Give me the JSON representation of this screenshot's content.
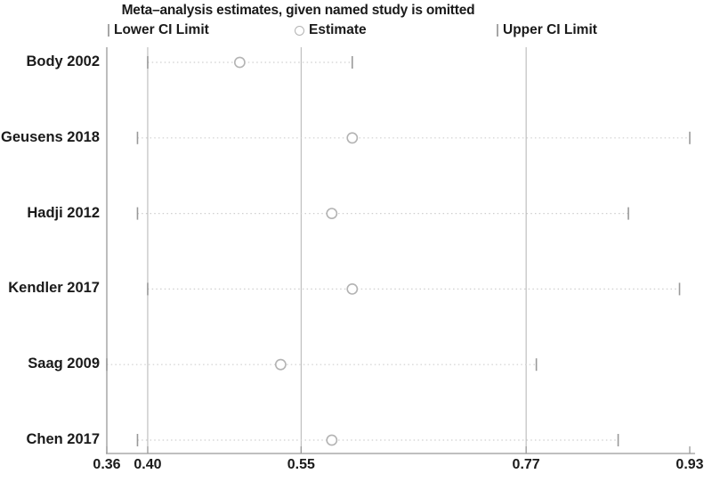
{
  "chart_data": {
    "type": "scatter",
    "subtype": "meta-analysis-leave-one-out-sensitivity",
    "title": "Meta–analysis estimates, given named study is omitted",
    "legend": [
      "Lower CI Limit",
      "Estimate",
      "Upper CI Limit"
    ],
    "legend_position": "top",
    "categories": [
      "Body 2002",
      "Geusens 2018",
      "Hadji 2012",
      "Kendler 2017",
      "Saag 2009",
      "Chen 2017"
    ],
    "series": [
      {
        "name": "Lower CI Limit",
        "marker": "vertical-tick",
        "values": [
          0.4,
          0.39,
          0.39,
          0.4,
          0.36,
          0.39
        ]
      },
      {
        "name": "Estimate",
        "marker": "open-circle",
        "values": [
          0.49,
          0.6,
          0.58,
          0.6,
          0.53,
          0.58
        ]
      },
      {
        "name": "Upper CI Limit",
        "marker": "vertical-tick",
        "values": [
          0.6,
          0.93,
          0.87,
          0.92,
          0.78,
          0.86
        ]
      }
    ],
    "xlim": [
      0.36,
      0.93
    ],
    "x_ticks": [
      "0.36",
      "0.40",
      "0.55",
      "0.77",
      "0.93"
    ],
    "x_gridlines": [
      0.4,
      0.55,
      0.77
    ],
    "connector": "dotted",
    "grid": "vertical-only",
    "colors": {
      "text": "#1a1a1a",
      "axis": "#999999",
      "gridline": "#b3b3b3",
      "ci_line": "#cfcfcf",
      "marker_stroke": "#b3b3b3",
      "background": "#ffffff"
    }
  }
}
